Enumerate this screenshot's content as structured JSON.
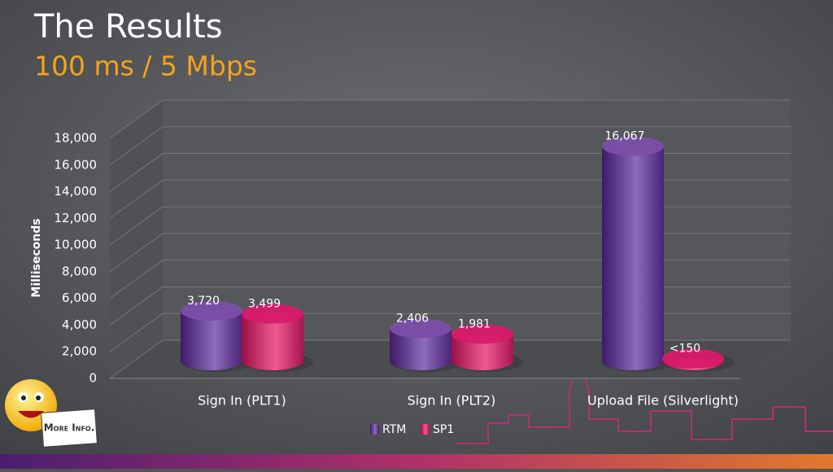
{
  "title": "The Results",
  "subtitle": "100 ms / 5 Mbps",
  "more_info": "More Info.",
  "chart_data": {
    "type": "bar3d",
    "categories": [
      "Sign In (PLT1)",
      "Sign  In (PLT2)",
      "Upload File (Silverlight)"
    ],
    "series": [
      {
        "name": "RTM",
        "color": "#7b4fa8",
        "values": [
          3720,
          2406,
          16067
        ],
        "value_labels": [
          "3,720",
          "2,406",
          "16,067"
        ]
      },
      {
        "name": "SP1",
        "color": "#d81b6a",
        "values": [
          3499,
          1981,
          150
        ],
        "value_labels": [
          "3,499",
          "1,981",
          "<150"
        ]
      }
    ],
    "y_label": "Milliseconds",
    "ylim": [
      0,
      18000
    ],
    "yticks": [
      0,
      {
        "value": 2000,
        "label": "2,000"
      },
      {
        "value": 4000,
        "label": "4,000"
      },
      {
        "value": 6000,
        "label": "6,000"
      },
      {
        "value": 8000,
        "label": "8,000"
      },
      {
        "value": 10000,
        "label": "10,000"
      },
      {
        "value": 12000,
        "label": "12,000"
      },
      {
        "value": 14000,
        "label": "14,000"
      },
      {
        "value": 16000,
        "label": "16,000"
      },
      {
        "value": 18000,
        "label": "18,000"
      }
    ],
    "grid": true,
    "legend": "bottom"
  }
}
